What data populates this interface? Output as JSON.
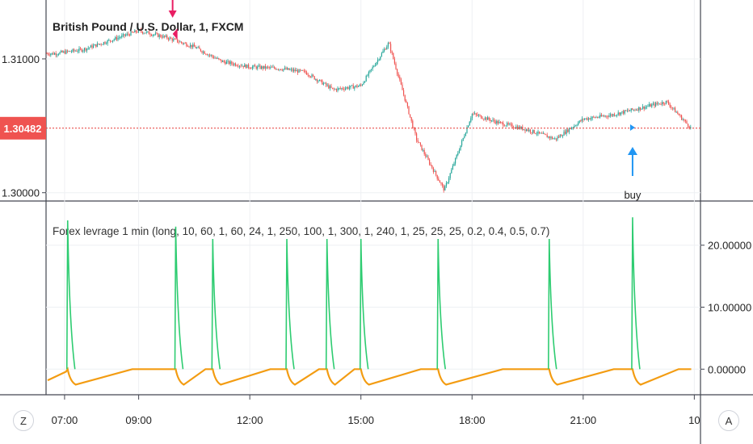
{
  "chart_data": [
    {
      "type": "candlestick",
      "title": "British Pound / U.S. Dollar, 1, FXCM",
      "y_ticks": [
        "1.31000",
        "1.30000"
      ],
      "ylim": [
        1.2995,
        1.3144
      ],
      "last_price": "1.30482",
      "last_price_value": 1.30482,
      "x_ticks": [
        "07:00",
        "09:00",
        "12:00",
        "15:00",
        "18:00",
        "21:00",
        "10"
      ],
      "x": [
        "06:45",
        "07:30",
        "08:15",
        "09:00",
        "09:45",
        "10:30",
        "11:15",
        "12:00",
        "12:45",
        "13:30",
        "14:15",
        "15:00",
        "15:45",
        "16:30",
        "17:15",
        "18:00",
        "18:45",
        "19:30",
        "20:15",
        "21:00",
        "21:45",
        "22:30",
        "23:15",
        "23:55"
      ],
      "close": [
        1.3104,
        1.3107,
        1.3114,
        1.3121,
        1.3116,
        1.3109,
        1.3098,
        1.3094,
        1.3093,
        1.309,
        1.3077,
        1.308,
        1.3112,
        1.304,
        1.3002,
        1.3059,
        1.3052,
        1.3047,
        1.304,
        1.3055,
        1.3058,
        1.3063,
        1.3068,
        1.3048
      ],
      "annotations": [
        {
          "type": "sell-arrow",
          "x": "09:55",
          "label": ""
        },
        {
          "type": "buy-arrow",
          "x": "22:20",
          "label": "buy"
        }
      ],
      "colors": {
        "up": "#26a69a",
        "down": "#ef5350",
        "price_line": "#e53935",
        "buy": "#2196f3",
        "sell": "#e91e63"
      }
    },
    {
      "type": "line",
      "title": "Forex levrage 1 min (long, 10, 60, 1, 60, 24, 1, 250, 100, 1, 300, 1, 240, 1, 25, 25, 25, 0.2, 0.4, 0.5, 0.7)",
      "y_ticks": [
        "20.00000",
        "10.00000",
        "0.00000"
      ],
      "ylim": [
        -4,
        27
      ],
      "series": [
        {
          "color": "#2ecc71",
          "spikes_x": [
            "07:05",
            "10:00",
            "11:00",
            "13:00",
            "14:05",
            "15:00",
            "17:05",
            "20:05",
            "22:20"
          ],
          "spike_peaks": [
            24,
            23,
            21,
            21,
            21,
            21,
            21,
            21,
            24.5
          ]
        },
        {
          "color": "#f39c12",
          "baseline": 0,
          "dip": -2.5
        }
      ]
    }
  ]
}
